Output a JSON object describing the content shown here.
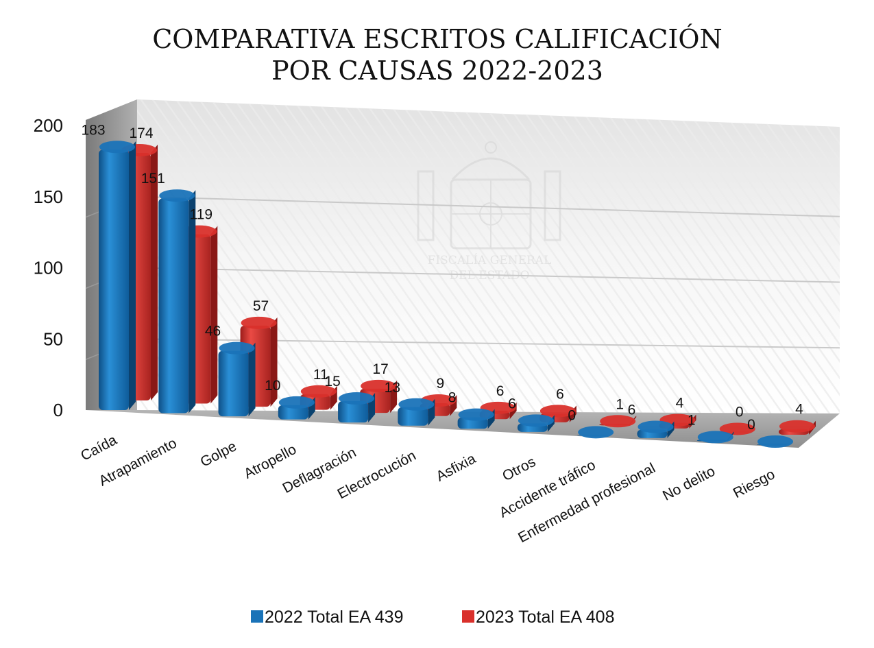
{
  "chart_data": {
    "type": "bar",
    "title_lines": [
      "COMPARATIVA ESCRITOS CALIFICACIÓN",
      "POR CAUSAS 2022-2023"
    ],
    "categories": [
      "Caída",
      "Atrapamiento",
      "Golpe",
      "Atropello",
      "Deflagración",
      "Electrocución",
      "Asfixia",
      "Otros",
      "Accidente tráfico",
      "Enfermedad profesional",
      "No delito",
      "Riesgo"
    ],
    "series": [
      {
        "name": "2022 Total EA 439",
        "color": "#1a73b8",
        "values": [
          183,
          151,
          46,
          10,
          15,
          13,
          8,
          6,
          0,
          6,
          1,
          0
        ]
      },
      {
        "name": "2023 Total EA 408",
        "color": "#d9302b",
        "values": [
          174,
          119,
          57,
          11,
          17,
          9,
          6,
          6,
          1,
          4,
          0,
          4
        ]
      }
    ],
    "y_ticks": [
      "0",
      "50",
      "100",
      "150",
      "200"
    ],
    "ylim": [
      0,
      200
    ],
    "grid": true,
    "legend_position": "bottom",
    "three_d": true,
    "watermark": {
      "line1": "FISCALÍA GENERAL",
      "line2": "DEL ESTADO"
    }
  }
}
